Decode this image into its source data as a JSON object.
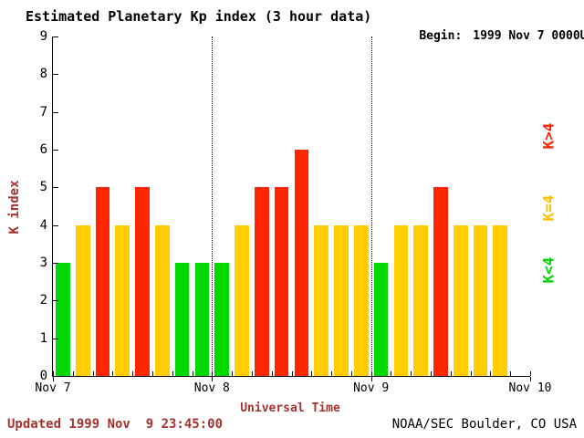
{
  "header": {
    "title": "Estimated Planetary Kp index (3 hour data)",
    "begin_label": "Begin:",
    "begin_value": "1999 Nov 7 0000UT"
  },
  "axes": {
    "ylabel": "K index",
    "xlabel": "Universal Time"
  },
  "legend": {
    "items": [
      {
        "label": "K>4",
        "color": "#ff2600"
      },
      {
        "label": "K=4",
        "color": "#ffc000"
      },
      {
        "label": "K<4",
        "color": "#00d800"
      }
    ]
  },
  "footer": {
    "updated": "Updated 1999 Nov  9 23:45:00",
    "credit": "NOAA/SEC Boulder, CO USA"
  },
  "colors": {
    "green": "#00d800",
    "yellow": "#ffcd00",
    "red": "#ff2600",
    "accent": "#a5322d"
  },
  "chart_data": {
    "type": "bar",
    "title": "Estimated Planetary Kp index (3 hour data)",
    "begin": "1999 Nov 7 0000UT",
    "xlabel": "Universal Time",
    "ylabel": "K index",
    "ylim": [
      0,
      9
    ],
    "yticks": [
      0,
      1,
      2,
      3,
      4,
      5,
      6,
      7,
      8,
      9
    ],
    "x_day_labels": [
      "Nov 7",
      "Nov 8",
      "Nov 9",
      "Nov 10"
    ],
    "hours_per_bar": 3,
    "grid": "dotted vertical lines at day boundaries",
    "legend_position": "right, rotated",
    "series": [
      {
        "date": "1999 Nov 7",
        "values": [
          3,
          4,
          5,
          4,
          5,
          4,
          3,
          3
        ]
      },
      {
        "date": "1999 Nov 8",
        "values": [
          3,
          4,
          5,
          5,
          6,
          4,
          4,
          4
        ]
      },
      {
        "date": "1999 Nov 9",
        "values": [
          3,
          4,
          4,
          5,
          4,
          4,
          4
        ]
      }
    ],
    "color_rule": {
      "below_4": "#00d800",
      "equal_4": "#ffcd00",
      "above_4": "#ff2600"
    }
  }
}
